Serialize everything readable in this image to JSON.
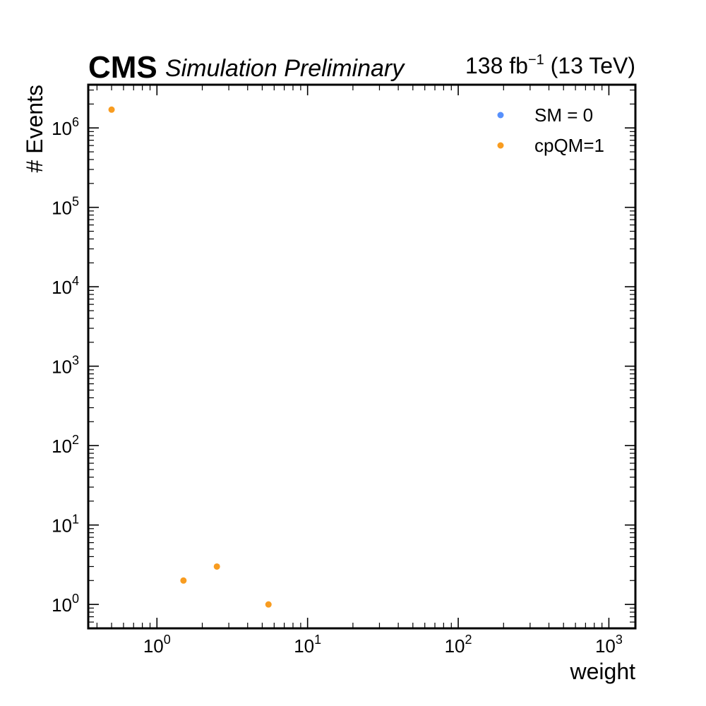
{
  "header": {
    "experiment": "CMS",
    "status": "Simulation Preliminary",
    "lumi_prefix": "138 fb",
    "lumi_exp": "−1",
    "lumi_suffix": " (13 TeV)"
  },
  "chart_data": {
    "type": "scatter",
    "xlabel": "weight",
    "ylabel": "# Events",
    "xscale": "log",
    "yscale": "log",
    "xlim": [
      0.35,
      1500
    ],
    "ylim": [
      0.5,
      3500000
    ],
    "x_ticks": [
      {
        "base": "10",
        "exp": "0",
        "value": 1
      },
      {
        "base": "10",
        "exp": "1",
        "value": 10
      },
      {
        "base": "10",
        "exp": "2",
        "value": 100
      },
      {
        "base": "10",
        "exp": "3",
        "value": 1000
      }
    ],
    "y_ticks": [
      {
        "base": "10",
        "exp": "0",
        "value": 1
      },
      {
        "base": "10",
        "exp": "1",
        "value": 10
      },
      {
        "base": "10",
        "exp": "2",
        "value": 100
      },
      {
        "base": "10",
        "exp": "3",
        "value": 1000
      },
      {
        "base": "10",
        "exp": "4",
        "value": 10000
      },
      {
        "base": "10",
        "exp": "5",
        "value": 100000
      },
      {
        "base": "10",
        "exp": "6",
        "value": 1000000
      }
    ],
    "grid": false,
    "legend_position": "top-right",
    "series": [
      {
        "name": "SM = 0",
        "color": "#5790fc",
        "x": [],
        "y": []
      },
      {
        "name": "cpQM=1",
        "color": "#f89c20",
        "x": [
          0.5,
          1.5,
          2.5,
          5.5
        ],
        "y": [
          1700000,
          2,
          3,
          1
        ]
      }
    ]
  }
}
